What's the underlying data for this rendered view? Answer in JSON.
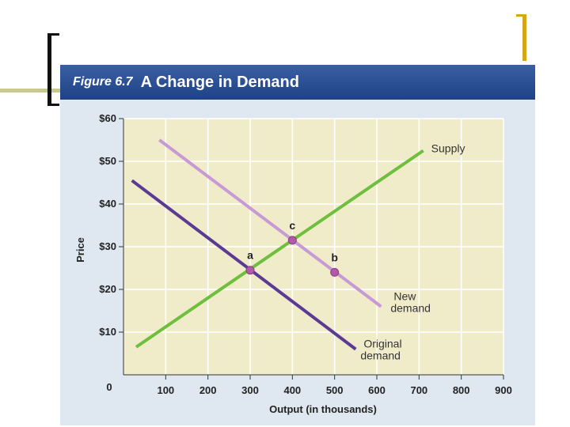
{
  "figure": {
    "label": "Figure 6.7",
    "title": "A Change in Demand"
  },
  "colors": {
    "supply": "#6fbf3f",
    "original_demand": "#5b3a94",
    "new_demand": "#c79ad6",
    "point": "#b05aa8",
    "plot_bg": "#f0ecc9",
    "grid": "#ffffff",
    "title_bar": "#2a4e92"
  },
  "chart_data": {
    "type": "line",
    "title": "A Change in Demand",
    "xlabel": "Output (in thousands)",
    "ylabel": "Price",
    "xlim": [
      0,
      900
    ],
    "ylim": [
      0,
      60
    ],
    "x_ticks": [
      100,
      200,
      300,
      400,
      500,
      600,
      700,
      800,
      900
    ],
    "y_ticks": [
      10,
      20,
      30,
      40,
      50,
      60
    ],
    "y_tick_labels": [
      "$10",
      "$20",
      "$30",
      "$40",
      "$50",
      "$60"
    ],
    "origin_label": "0",
    "grid": true,
    "series": [
      {
        "name": "Supply",
        "label_lines": [
          "Supply"
        ],
        "x": [
          30,
          710
        ],
        "y": [
          6.5,
          52.5
        ]
      },
      {
        "name": "Original demand",
        "label_lines": [
          "Original",
          "demand"
        ],
        "x": [
          20,
          550
        ],
        "y": [
          45.5,
          6
        ]
      },
      {
        "name": "New demand",
        "label_lines": [
          "New",
          "demand"
        ],
        "x": [
          85,
          610
        ],
        "y": [
          55,
          16
        ]
      }
    ],
    "points": [
      {
        "label": "a",
        "x": 300,
        "y": 24.5
      },
      {
        "label": "c",
        "x": 400,
        "y": 31.5
      },
      {
        "label": "b",
        "x": 500,
        "y": 24
      }
    ]
  }
}
